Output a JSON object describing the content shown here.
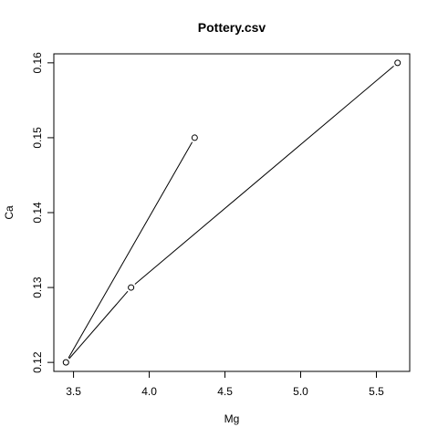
{
  "chart_data": {
    "type": "line",
    "title": "Pottery.csv",
    "xlabel": "Mg",
    "ylabel": "Ca",
    "x": [
      4.3,
      3.45,
      3.88,
      5.64
    ],
    "y": [
      0.15,
      0.12,
      0.13,
      0.16
    ],
    "xlim": [
      3.37,
      5.72
    ],
    "ylim": [
      0.1188,
      0.1612
    ],
    "xticks": [
      3.5,
      4.0,
      4.5,
      5.0,
      5.5
    ],
    "xtick_labels": [
      "3.5",
      "4.0",
      "4.5",
      "5.0",
      "5.5"
    ],
    "yticks": [
      0.12,
      0.13,
      0.14,
      0.15,
      0.16
    ],
    "ytick_labels": [
      "0.12",
      "0.13",
      "0.14",
      "0.15",
      "0.16"
    ],
    "grid": false,
    "marker": "open-circle",
    "colors": {
      "line": "#000000",
      "point": "#000000",
      "background": "#ffffff"
    }
  }
}
